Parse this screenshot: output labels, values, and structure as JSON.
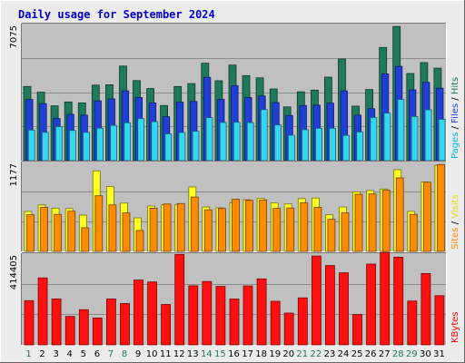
{
  "title": "Daily usage for September 2024",
  "colors": {
    "hits": "#1e7a5a",
    "files": "#1f3fd8",
    "pages": "#33d8f0",
    "visits": "#ffff22",
    "sites": "#ff8c00",
    "kbytes": "#ff1010",
    "weekday": "#000000",
    "weekend": "#207a50"
  },
  "chart_data": [
    {
      "type": "bar",
      "panel": "top",
      "ymax_label": "7075",
      "ylim": [
        0,
        7075
      ],
      "side_labels": [
        {
          "text": "Pages",
          "color": "#00b7d8"
        },
        {
          "text": "Files",
          "color": "#1f3fd8"
        },
        {
          "text": "Hits",
          "color": "#1e7a5a"
        }
      ],
      "separator": " / ",
      "x": [
        1,
        2,
        3,
        4,
        5,
        6,
        7,
        8,
        9,
        10,
        11,
        12,
        13,
        14,
        15,
        16,
        17,
        18,
        19,
        20,
        21,
        22,
        23,
        24,
        25,
        26,
        27,
        28,
        29,
        30,
        31
      ],
      "series": [
        {
          "name": "Hits",
          "values": [
            3880,
            3580,
            2870,
            3070,
            3020,
            3950,
            3970,
            4950,
            4190,
            3770,
            2880,
            3880,
            4030,
            5100,
            4180,
            5000,
            4450,
            4330,
            3750,
            2810,
            3600,
            3690,
            4370,
            5320,
            2850,
            3720,
            5920,
            7020,
            4560,
            5130,
            4840
          ]
        },
        {
          "name": "Files",
          "values": [
            3200,
            2980,
            2200,
            2420,
            2380,
            3130,
            3230,
            3650,
            3300,
            3020,
            2300,
            3060,
            3100,
            4360,
            3210,
            3920,
            3300,
            3380,
            3040,
            2360,
            2880,
            2900,
            3010,
            3650,
            2380,
            2720,
            4540,
            4930,
            3700,
            4100,
            3790
          ]
        },
        {
          "name": "Pages",
          "values": [
            1600,
            1480,
            1780,
            1580,
            1480,
            1700,
            1840,
            1980,
            2200,
            2040,
            1400,
            1470,
            1540,
            2250,
            2000,
            2010,
            1990,
            2670,
            1870,
            1330,
            1620,
            1690,
            1690,
            1320,
            1500,
            2260,
            2490,
            3200,
            2310,
            2660,
            2160
          ]
        }
      ]
    },
    {
      "type": "bar",
      "panel": "middle",
      "ymax_label": "1177",
      "ylim": [
        0,
        1177
      ],
      "side_labels": [
        {
          "text": "Sites",
          "color": "#ff8c00"
        },
        {
          "text": "Visits",
          "color": "#dddd00"
        }
      ],
      "separator": " / ",
      "x": [
        1,
        2,
        3,
        4,
        5,
        6,
        7,
        8,
        9,
        10,
        11,
        12,
        13,
        14,
        15,
        16,
        17,
        18,
        19,
        20,
        21,
        22,
        23,
        24,
        25,
        26,
        27,
        28,
        29,
        30,
        31
      ],
      "series": [
        {
          "name": "Visits",
          "values": [
            534,
            621,
            577,
            574,
            485,
            1076,
            868,
            645,
            449,
            608,
            622,
            626,
            862,
            593,
            583,
            649,
            691,
            711,
            647,
            635,
            705,
            713,
            491,
            593,
            797,
            814,
            835,
            1092,
            535,
            927,
            1151
          ]
        },
        {
          "name": "Sites",
          "values": [
            492,
            590,
            495,
            537,
            316,
            744,
            621,
            515,
            280,
            577,
            633,
            640,
            727,
            556,
            573,
            698,
            682,
            688,
            575,
            580,
            649,
            589,
            429,
            515,
            763,
            768,
            819,
            983,
            495,
            925,
            1160
          ]
        }
      ]
    },
    {
      "type": "bar",
      "panel": "bottom",
      "ymax_label": "414405",
      "ylim": [
        0,
        414405
      ],
      "side_labels": [
        {
          "text": "KBytes",
          "color": "#ff0000"
        }
      ],
      "separator": "",
      "x": [
        1,
        2,
        3,
        4,
        5,
        6,
        7,
        8,
        9,
        10,
        11,
        12,
        13,
        14,
        15,
        16,
        17,
        18,
        19,
        20,
        21,
        22,
        23,
        24,
        25,
        26,
        27,
        28,
        29,
        30,
        31
      ],
      "series": [
        {
          "name": "KBytes",
          "values": [
            203850,
            309060,
            212000,
            131090,
            162000,
            123870,
            211450,
            190720,
            299020,
            289880,
            186230,
            417360,
            272430,
            292170,
            269470,
            211450,
            271530,
            304170,
            201000,
            146530,
            217000,
            410000,
            365660,
            332460,
            140390,
            372410,
            426230,
            404260,
            202360,
            328820,
            227000
          ]
        }
      ]
    }
  ],
  "x_axis": {
    "labels": [
      "1",
      "2",
      "3",
      "4",
      "5",
      "6",
      "7",
      "8",
      "9",
      "10",
      "11",
      "12",
      "13",
      "14",
      "15",
      "16",
      "17",
      "18",
      "19",
      "20",
      "21",
      "22",
      "23",
      "24",
      "25",
      "26",
      "27",
      "28",
      "29",
      "30",
      "31"
    ],
    "weekend": [
      1,
      7,
      8,
      14,
      15,
      21,
      22,
      28,
      29
    ]
  }
}
